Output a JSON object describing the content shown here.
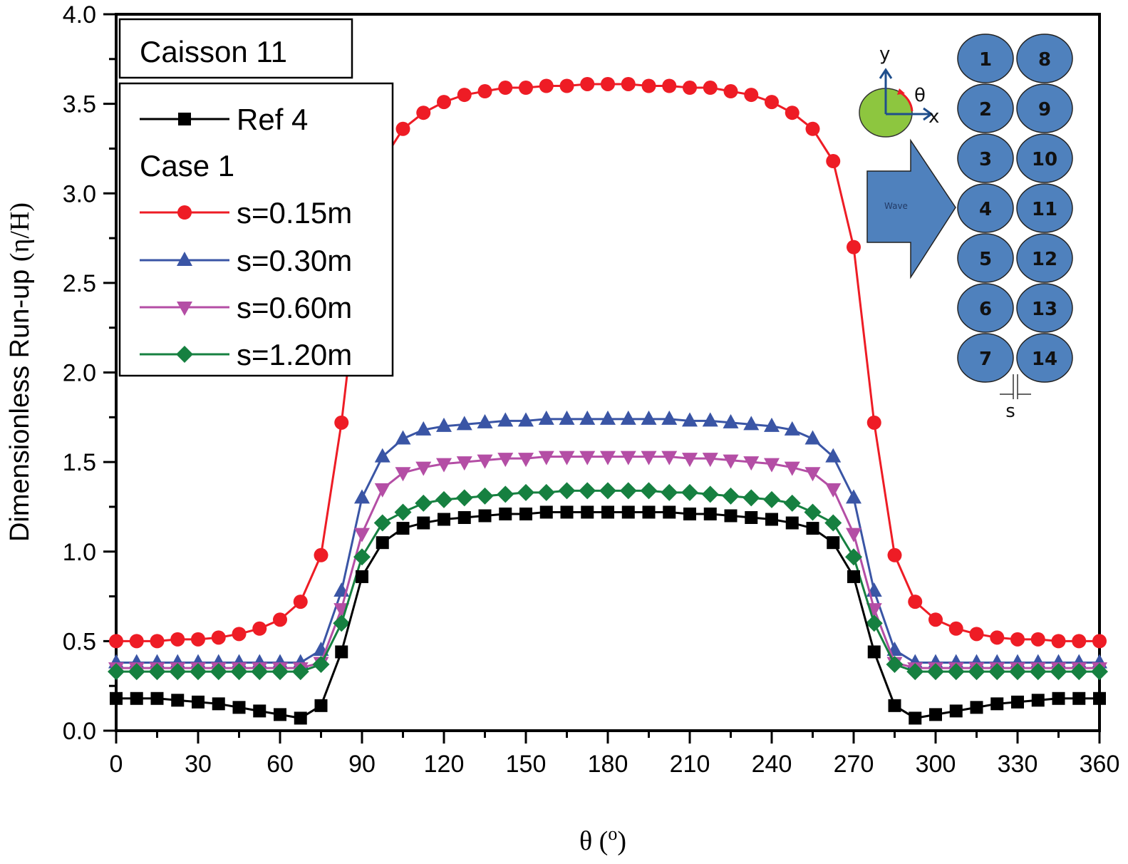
{
  "chart_data": {
    "type": "line",
    "title": "",
    "xlabel": "θ (°)",
    "xlabel_main": "θ (",
    "xlabel_sup": "o",
    "xlabel_close": ")",
    "ylabel": "Dimensionless Run-up (η/H)",
    "ylabel_text": "Dimensionless Run-up ",
    "ylabel_greek": "(η/H)",
    "xlim": [
      0,
      360
    ],
    "ylim": [
      0.0,
      4.0
    ],
    "xticks": [
      "0",
      "30",
      "60",
      "90",
      "120",
      "150",
      "180",
      "210",
      "240",
      "270",
      "300",
      "330",
      "360"
    ],
    "yticks": [
      "0.0",
      "0.5",
      "1.0",
      "1.5",
      "2.0",
      "2.5",
      "3.0",
      "3.5",
      "4.0"
    ],
    "grid": false,
    "annotation_box": "Caisson 11",
    "legend_placement": "top-left",
    "legend_entries": [
      {
        "label": "Ref 4",
        "kind": "series",
        "series_index": 0
      },
      {
        "label": "Case 1",
        "kind": "heading"
      },
      {
        "label": "s=0.15m",
        "kind": "series",
        "series_index": 1
      },
      {
        "label": "s=0.30m",
        "kind": "series",
        "series_index": 2
      },
      {
        "label": "s=0.60m",
        "kind": "series",
        "series_index": 3
      },
      {
        "label": "s=1.20m",
        "kind": "series",
        "series_index": 4
      }
    ],
    "x": [
      0,
      7.5,
      15,
      22.5,
      30,
      37.5,
      45,
      52.5,
      60,
      67.5,
      75,
      82.5,
      90,
      97.5,
      105,
      112.5,
      120,
      127.5,
      135,
      142.5,
      150,
      157.5,
      165,
      172.5,
      180,
      187.5,
      195,
      202.5,
      210,
      217.5,
      225,
      232.5,
      240,
      247.5,
      255,
      262.5,
      270,
      277.5,
      285,
      292.5,
      300,
      307.5,
      315,
      322.5,
      330,
      337.5,
      345,
      352.5,
      360
    ],
    "series": [
      {
        "name": "Ref 4",
        "color": "#000000",
        "marker": "square",
        "values": [
          0.18,
          0.18,
          0.18,
          0.17,
          0.16,
          0.15,
          0.13,
          0.11,
          0.09,
          0.07,
          0.14,
          0.44,
          0.86,
          1.05,
          1.13,
          1.16,
          1.18,
          1.19,
          1.2,
          1.21,
          1.21,
          1.22,
          1.22,
          1.22,
          1.22,
          1.22,
          1.22,
          1.22,
          1.21,
          1.21,
          1.2,
          1.19,
          1.18,
          1.16,
          1.13,
          1.05,
          0.86,
          0.44,
          0.14,
          0.07,
          0.09,
          0.11,
          0.13,
          0.15,
          0.16,
          0.17,
          0.18,
          0.18,
          0.18
        ]
      },
      {
        "name": "s=0.15m",
        "color": "#ee1c25",
        "marker": "circle",
        "values": [
          0.5,
          0.5,
          0.5,
          0.51,
          0.51,
          0.52,
          0.54,
          0.57,
          0.62,
          0.72,
          0.98,
          1.72,
          2.7,
          3.18,
          3.36,
          3.45,
          3.51,
          3.55,
          3.57,
          3.59,
          3.59,
          3.6,
          3.6,
          3.61,
          3.61,
          3.61,
          3.6,
          3.6,
          3.59,
          3.59,
          3.57,
          3.55,
          3.51,
          3.45,
          3.36,
          3.18,
          2.7,
          1.72,
          0.98,
          0.72,
          0.62,
          0.57,
          0.54,
          0.52,
          0.51,
          0.51,
          0.5,
          0.5,
          0.5
        ]
      },
      {
        "name": "s=0.30m",
        "color": "#3a55a5",
        "marker": "triangle-up",
        "values": [
          0.38,
          0.38,
          0.38,
          0.38,
          0.38,
          0.38,
          0.38,
          0.38,
          0.38,
          0.38,
          0.45,
          0.78,
          1.3,
          1.53,
          1.63,
          1.68,
          1.7,
          1.71,
          1.72,
          1.73,
          1.73,
          1.74,
          1.74,
          1.74,
          1.74,
          1.74,
          1.74,
          1.74,
          1.73,
          1.73,
          1.72,
          1.71,
          1.7,
          1.68,
          1.63,
          1.53,
          1.3,
          0.78,
          0.45,
          0.38,
          0.38,
          0.38,
          0.38,
          0.38,
          0.38,
          0.38,
          0.38,
          0.38,
          0.38
        ]
      },
      {
        "name": "s=0.60m",
        "color": "#b44ea5",
        "marker": "triangle-down",
        "values": [
          0.35,
          0.35,
          0.35,
          0.35,
          0.35,
          0.35,
          0.35,
          0.35,
          0.35,
          0.35,
          0.38,
          0.68,
          1.1,
          1.35,
          1.44,
          1.47,
          1.49,
          1.5,
          1.51,
          1.52,
          1.52,
          1.53,
          1.53,
          1.53,
          1.53,
          1.53,
          1.53,
          1.53,
          1.52,
          1.52,
          1.51,
          1.5,
          1.49,
          1.47,
          1.44,
          1.35,
          1.1,
          0.68,
          0.38,
          0.35,
          0.35,
          0.35,
          0.35,
          0.35,
          0.35,
          0.35,
          0.35,
          0.35,
          0.35
        ]
      },
      {
        "name": "s=1.20m",
        "color": "#168040",
        "marker": "diamond",
        "values": [
          0.33,
          0.33,
          0.33,
          0.33,
          0.33,
          0.33,
          0.33,
          0.33,
          0.33,
          0.33,
          0.37,
          0.6,
          0.97,
          1.16,
          1.22,
          1.27,
          1.29,
          1.3,
          1.31,
          1.32,
          1.33,
          1.33,
          1.34,
          1.34,
          1.34,
          1.34,
          1.34,
          1.33,
          1.33,
          1.32,
          1.31,
          1.3,
          1.29,
          1.27,
          1.22,
          1.16,
          0.97,
          0.6,
          0.37,
          0.33,
          0.33,
          0.33,
          0.33,
          0.33,
          0.33,
          0.33,
          0.33,
          0.33,
          0.33
        ]
      }
    ],
    "inset": {
      "caisson_labels": [
        "1",
        "2",
        "3",
        "4",
        "5",
        "6",
        "7",
        "8",
        "9",
        "10",
        "11",
        "12",
        "13",
        "14"
      ],
      "caisson_fill": "#4f81bd",
      "reference_circle_fill": "#8dc63f",
      "arrow_fill": "#4f81bd",
      "axis_color": "#1f4e8c",
      "angle_color": "#ee1c25",
      "x_axis_label": "x",
      "y_axis_label": "y",
      "angle_label": "θ",
      "wave_label": "Wave",
      "gap_label": "s"
    }
  }
}
